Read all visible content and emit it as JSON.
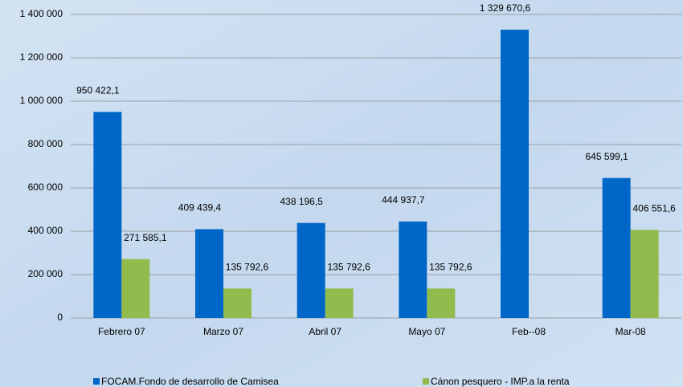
{
  "chart_data": {
    "type": "bar",
    "categories": [
      "Febrero 07",
      "Marzo 07",
      "Abril 07",
      "Mayo 07",
      "Feb--08",
      "Mar-08"
    ],
    "series": [
      {
        "name": "FOCAM.Fondo de desarrollo de Camisea",
        "color": "#0066c8",
        "values": [
          950422.1,
          409439.4,
          438196.5,
          444937.7,
          1329670.6,
          645599.1
        ],
        "value_labels": [
          "950 422,1",
          "409 439,4",
          "438 196,5",
          "444 937,7",
          "1 329 670,6",
          "645 599,1"
        ]
      },
      {
        "name": "Cánon pesquero - IMP.a la renta",
        "color": "#92bb4e",
        "values": [
          271585.1,
          135792.6,
          135792.6,
          135792.6,
          null,
          406551.6
        ],
        "value_labels": [
          "271 585,1",
          "135 792,6",
          "135 792,6",
          "135 792,6",
          null,
          "406 551,6"
        ]
      }
    ],
    "ylim": [
      0,
      1400000
    ],
    "yticks": [
      0,
      {
        "value": 200000,
        "label": "200 000"
      },
      {
        "value": 400000,
        "label": "400 000"
      },
      {
        "value": 600000,
        "label": "600 000"
      },
      {
        "value": 800000,
        "label": "800 000"
      },
      {
        "value": 1000000,
        "label": "1 000 000"
      },
      {
        "value": 1200000,
        "label": "1 200 000"
      },
      {
        "value": 1400000,
        "label": "1 400 000"
      }
    ],
    "grid": true,
    "legend": "bottom"
  }
}
